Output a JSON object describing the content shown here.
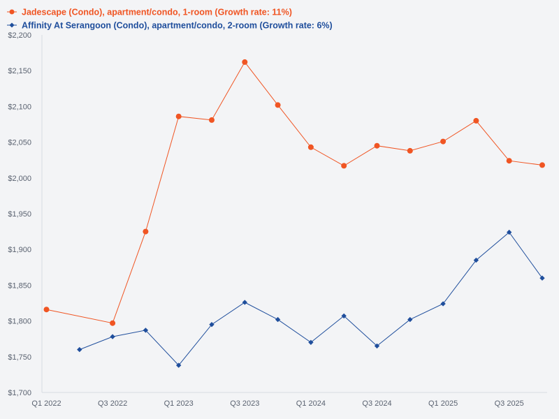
{
  "chart_data": {
    "type": "line",
    "categories": [
      "Q1 2022",
      "Q2 2022",
      "Q3 2022",
      "Q4 2022",
      "Q1 2023",
      "Q2 2023",
      "Q3 2023",
      "Q4 2023",
      "Q1 2024",
      "Q2 2024",
      "Q3 2024",
      "Q4 2024",
      "Q1 2025",
      "Q2 2025",
      "Q3 2025",
      "Q4 2025"
    ],
    "x_tick_labels": [
      "Q1 2022",
      "Q3 2022",
      "Q1 2023",
      "Q3 2023",
      "Q1 2024",
      "Q3 2024",
      "Q1 2025",
      "Q3 2025"
    ],
    "y_ticks": [
      1700,
      1750,
      1800,
      1850,
      1900,
      1950,
      2000,
      2050,
      2100,
      2150,
      2200
    ],
    "y_tick_labels": [
      "$1,700",
      "$1,750",
      "$1,800",
      "$1,850",
      "$1,900",
      "$1,950",
      "$2,000",
      "$2,050",
      "$2,100",
      "$2,150",
      "$2,200"
    ],
    "ylim": [
      1700,
      2200
    ],
    "title": "",
    "xlabel": "",
    "ylabel": "",
    "legend_position": "top-left",
    "series": [
      {
        "name": "Jadescape (Condo), apartment/condo, 1-room (Growth rate: 11%)",
        "color": "#f05523",
        "marker": "circle",
        "values": [
          1816,
          null,
          1797,
          1925,
          2086,
          2081,
          2162,
          2102,
          2043,
          2017,
          2045,
          2038,
          2051,
          2080,
          2024,
          2018
        ]
      },
      {
        "name": "Affinity At Serangoon (Condo), apartment/condo, 2-room (Growth rate: 6%)",
        "color": "#1f4e9c",
        "marker": "diamond",
        "values": [
          null,
          1760,
          1778,
          1787,
          1738,
          1795,
          1826,
          1802,
          1770,
          1807,
          1765,
          1802,
          1824,
          1885,
          1924,
          1860
        ]
      }
    ]
  }
}
